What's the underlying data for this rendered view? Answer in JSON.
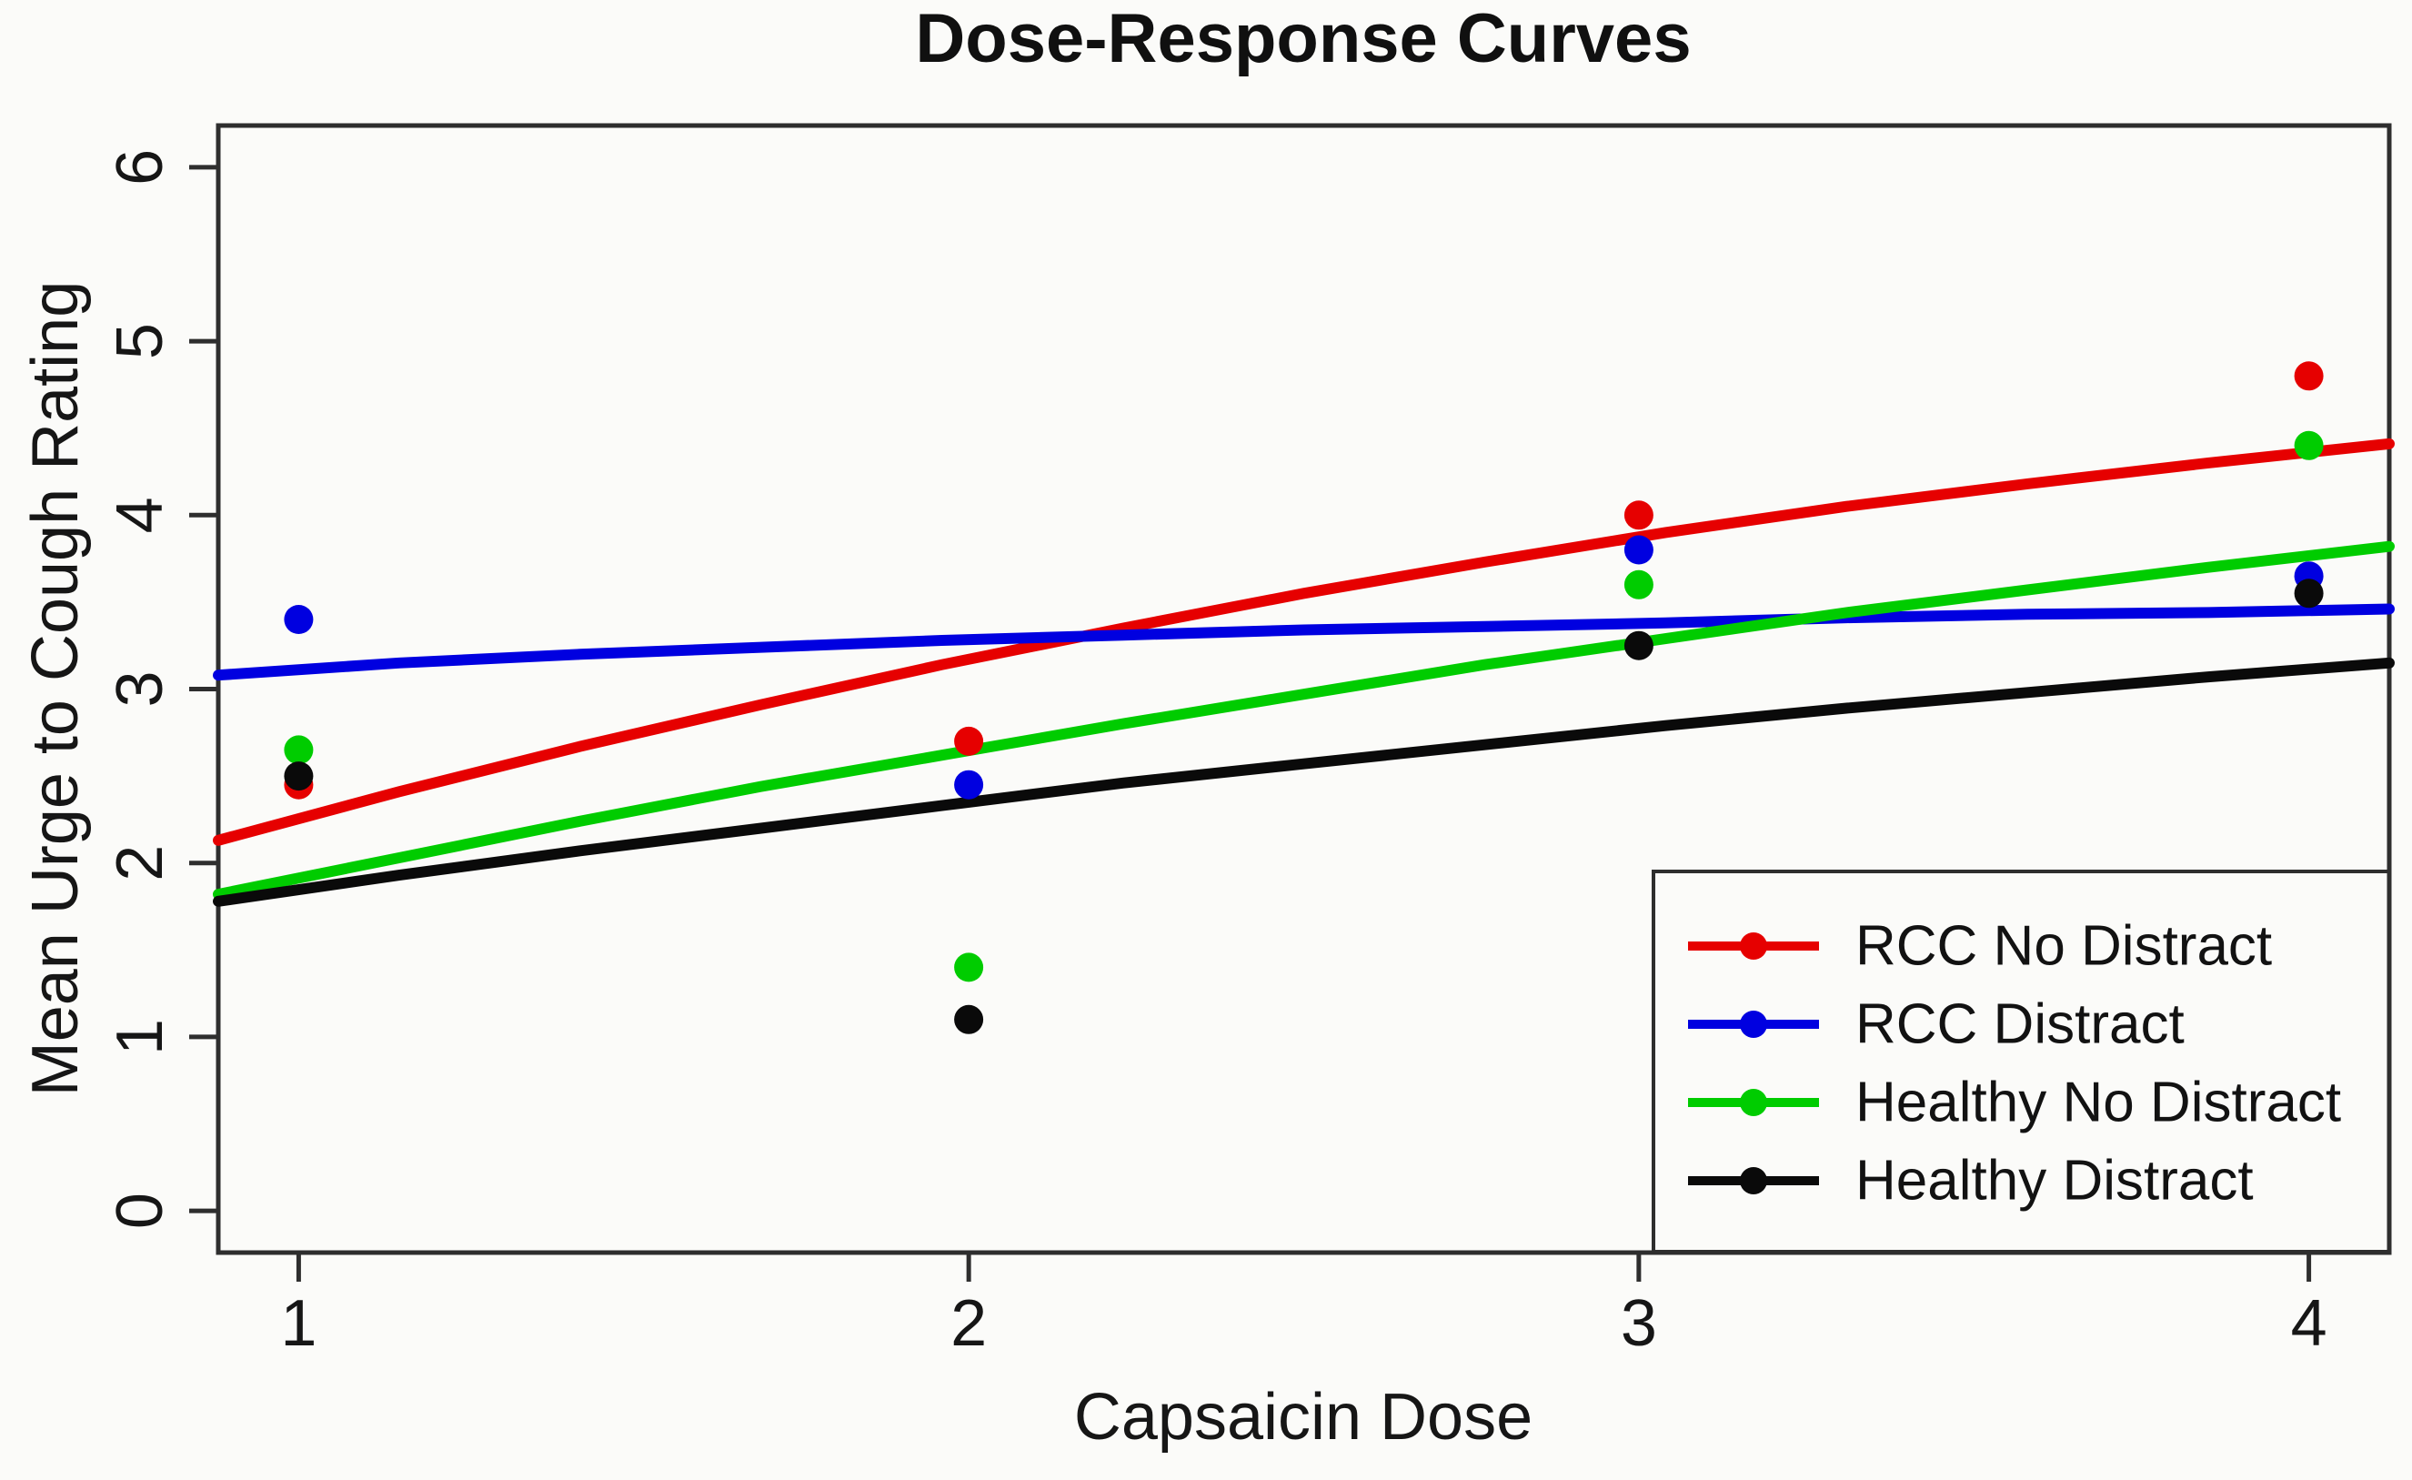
{
  "figure": {
    "title": "Dose-Response Curves"
  },
  "chart_data": {
    "type": "scatter",
    "title": "Dose-Response Curves",
    "xlabel": "Capsaicin Dose",
    "ylabel": "Mean Urge to Cough Rating",
    "xlim": [
      1,
      4
    ],
    "ylim": [
      0,
      6
    ],
    "axis_expansion": 0.04,
    "grid": "off",
    "xtick_values": [
      1,
      2,
      3,
      4
    ],
    "xticks": [
      "1",
      "2",
      "3",
      "4"
    ],
    "ytick_values": [
      0,
      1,
      2,
      3,
      4,
      5,
      6
    ],
    "yticks": [
      "0",
      "1",
      "2",
      "3",
      "4",
      "5",
      "6"
    ],
    "legend_position": "bottom-right",
    "marker": "filled-circle",
    "series": [
      {
        "name": "RCC No Distract",
        "color": "#e60000",
        "dose": [
          1,
          2,
          3,
          4
        ],
        "mean_rating": [
          2.45,
          2.7,
          4.0,
          4.8
        ],
        "fit_x": [
          0.88,
          1.15,
          1.42,
          1.69,
          1.96,
          2.23,
          2.5,
          2.77,
          3.04,
          3.31,
          3.58,
          3.85,
          4.12
        ],
        "fit_y": [
          2.13,
          2.41,
          2.67,
          2.91,
          3.14,
          3.35,
          3.55,
          3.73,
          3.9,
          4.05,
          4.18,
          4.3,
          4.41
        ]
      },
      {
        "name": "RCC Distract",
        "color": "#0000e0",
        "dose": [
          1,
          2,
          3,
          4
        ],
        "mean_rating": [
          3.4,
          2.45,
          3.8,
          3.65
        ],
        "fit_x": [
          0.88,
          1.15,
          1.42,
          1.69,
          1.96,
          2.23,
          2.5,
          2.77,
          3.04,
          3.31,
          3.58,
          3.85,
          4.12
        ],
        "fit_y": [
          3.08,
          3.15,
          3.2,
          3.24,
          3.28,
          3.31,
          3.34,
          3.36,
          3.38,
          3.41,
          3.43,
          3.44,
          3.46
        ]
      },
      {
        "name": "Healthy No Distract",
        "color": "#00cc00",
        "dose": [
          1,
          2,
          3,
          4
        ],
        "mean_rating": [
          2.65,
          1.4,
          3.6,
          4.4
        ],
        "fit_x": [
          0.88,
          1.15,
          1.42,
          1.69,
          1.96,
          2.23,
          2.5,
          2.77,
          3.04,
          3.31,
          3.58,
          3.85,
          4.12
        ],
        "fit_y": [
          1.82,
          2.03,
          2.24,
          2.44,
          2.62,
          2.8,
          2.97,
          3.14,
          3.29,
          3.44,
          3.57,
          3.7,
          3.82
        ]
      },
      {
        "name": "Healthy Distract",
        "color": "#0a0a0a",
        "dose": [
          1,
          2,
          3,
          4
        ],
        "mean_rating": [
          2.5,
          1.1,
          3.25,
          3.55
        ],
        "fit_x": [
          0.88,
          1.15,
          1.42,
          1.69,
          1.96,
          2.23,
          2.5,
          2.77,
          3.04,
          3.31,
          3.58,
          3.85,
          4.12
        ],
        "fit_y": [
          1.78,
          1.93,
          2.07,
          2.2,
          2.33,
          2.46,
          2.57,
          2.68,
          2.79,
          2.89,
          2.98,
          3.07,
          3.15
        ]
      }
    ]
  }
}
